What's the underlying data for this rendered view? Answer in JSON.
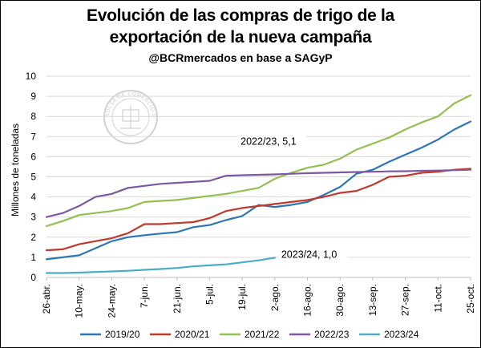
{
  "title_line1": "Evolución de las compras de trigo de la",
  "title_line2": "exportación de la nueva campaña",
  "subtitle": "@BCRmercados en base a SAGyP",
  "watermark_text": "BOLSA DE COMERCIO DE ROSARIO",
  "chart_data": {
    "type": "line",
    "ylabel": "Millones de toneladas",
    "xlabel": "",
    "ylim": [
      0,
      10
    ],
    "yticks": [
      0,
      1,
      2,
      3,
      4,
      5,
      6,
      7,
      8,
      9,
      10
    ],
    "grid": true,
    "legend_position": "bottom",
    "x_ticks": [
      "26-abr.",
      "10-may.",
      "24-may.",
      "7-jun.",
      "21-jun.",
      "5-jul.",
      "19-jul.",
      "2-ago.",
      "16-ago.",
      "30-ago.",
      "13-sep.",
      "27-sep.",
      "11-oct.",
      "25-oct."
    ],
    "x_points": [
      "26-abr.",
      "3-may.",
      "10-may.",
      "17-may.",
      "24-may.",
      "31-may.",
      "7-jun.",
      "14-jun.",
      "21-jun.",
      "28-jun.",
      "5-jul.",
      "12-jul.",
      "19-jul.",
      "26-jul.",
      "2-ago.",
      "9-ago.",
      "16-ago.",
      "23-ago.",
      "30-ago.",
      "6-sep.",
      "13-sep.",
      "20-sep.",
      "27-sep.",
      "4-oct.",
      "11-oct.",
      "18-oct.",
      "25-oct."
    ],
    "series": [
      {
        "name": "2019/20",
        "color": "#2E75B6",
        "values": [
          0.9,
          1.0,
          1.1,
          1.45,
          1.8,
          2.0,
          2.1,
          2.18,
          2.25,
          2.5,
          2.6,
          2.85,
          3.05,
          3.6,
          3.5,
          3.6,
          3.75,
          4.1,
          4.5,
          5.15,
          5.35,
          5.75,
          6.1,
          6.45,
          6.85,
          7.35,
          7.75
        ]
      },
      {
        "name": "2020/21",
        "color": "#C0392B",
        "values": [
          1.35,
          1.4,
          1.65,
          1.8,
          1.95,
          2.2,
          2.65,
          2.65,
          2.7,
          2.75,
          2.95,
          3.3,
          3.45,
          3.55,
          3.65,
          3.75,
          3.85,
          4.0,
          4.2,
          4.3,
          4.6,
          5.0,
          5.05,
          5.2,
          5.25,
          5.35,
          5.4
        ]
      },
      {
        "name": "2021/22",
        "color": "#92C050",
        "values": [
          2.55,
          2.8,
          3.1,
          3.2,
          3.3,
          3.45,
          3.75,
          3.8,
          3.85,
          3.95,
          4.05,
          4.15,
          4.3,
          4.45,
          4.9,
          5.2,
          5.45,
          5.6,
          5.9,
          6.35,
          6.65,
          6.95,
          7.35,
          7.7,
          8.0,
          8.65,
          9.05
        ]
      },
      {
        "name": "2022/23",
        "color": "#7E57A2",
        "values": [
          3.0,
          3.2,
          3.55,
          4.0,
          4.15,
          4.45,
          4.55,
          4.65,
          4.7,
          4.75,
          4.8,
          5.05,
          5.08,
          5.1,
          5.12,
          5.15,
          5.18,
          5.2,
          5.22,
          5.24,
          5.25,
          5.27,
          5.28,
          5.3,
          5.31,
          5.33,
          5.35
        ]
      },
      {
        "name": "2023/24",
        "color": "#4BACC6",
        "values": [
          0.22,
          0.22,
          0.24,
          0.27,
          0.3,
          0.33,
          0.38,
          0.42,
          0.47,
          0.55,
          0.6,
          0.65,
          0.75,
          0.85,
          0.98
        ]
      }
    ],
    "annotations": [
      {
        "text": "2022/23, 5,1",
        "series": "2022/23"
      },
      {
        "text": "2023/24, 1,0",
        "series": "2023/24"
      }
    ]
  }
}
